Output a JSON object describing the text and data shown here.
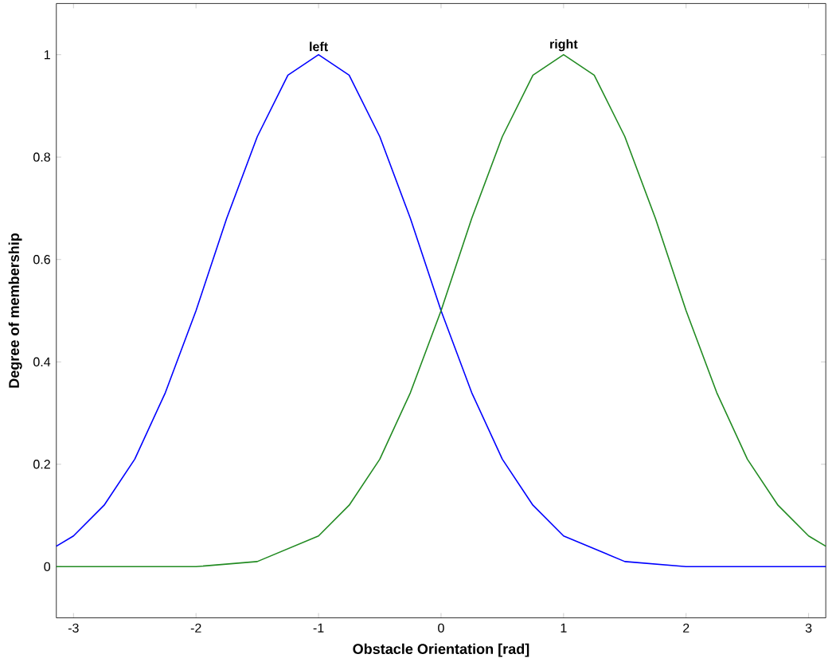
{
  "chart_data": {
    "type": "line",
    "xlabel": "Obstacle Orientation [rad]",
    "ylabel": "Degree of membership",
    "xlim": [
      -3.14,
      3.14
    ],
    "ylim": [
      -0.1,
      1.1
    ],
    "xticks": [
      -3,
      -2,
      -1,
      0,
      1,
      2,
      3
    ],
    "yticks": [
      0,
      0.2,
      0.4,
      0.6,
      0.8,
      1
    ],
    "grid": false,
    "marker": "none",
    "line_style": "solid",
    "series": [
      {
        "color": "#0000ff",
        "x": [
          -3.14,
          -3,
          -2.75,
          -2.5,
          -2.25,
          -2,
          -1.75,
          -1.5,
          -1.25,
          -1,
          -0.75,
          -0.5,
          -0.25,
          0,
          0.25,
          0.5,
          0.75,
          1,
          1.5,
          2,
          2.5,
          3,
          3.14
        ],
        "values": [
          0.04,
          0.06,
          0.12,
          0.21,
          0.34,
          0.5,
          0.68,
          0.84,
          0.96,
          1,
          0.96,
          0.84,
          0.68,
          0.5,
          0.34,
          0.21,
          0.12,
          0.06,
          0.01,
          0,
          0,
          0,
          0
        ]
      },
      {
        "color": "#228b22",
        "x": [
          -3.14,
          -3,
          -2.5,
          -2,
          -1.5,
          -1,
          -0.75,
          -0.5,
          -0.25,
          0,
          0.25,
          0.5,
          0.75,
          1,
          1.25,
          1.5,
          1.75,
          2,
          2.25,
          2.5,
          2.75,
          3,
          3.14
        ],
        "values": [
          0,
          0,
          0,
          0,
          0.01,
          0.06,
          0.12,
          0.21,
          0.34,
          0.5,
          0.68,
          0.84,
          0.96,
          1,
          0.96,
          0.84,
          0.68,
          0.5,
          0.34,
          0.21,
          0.12,
          0.06,
          0.04
        ]
      }
    ],
    "annotations": [
      {
        "text": "left",
        "x": -1,
        "y": 1
      },
      {
        "text": "right",
        "x": 1,
        "y": 1
      }
    ]
  }
}
